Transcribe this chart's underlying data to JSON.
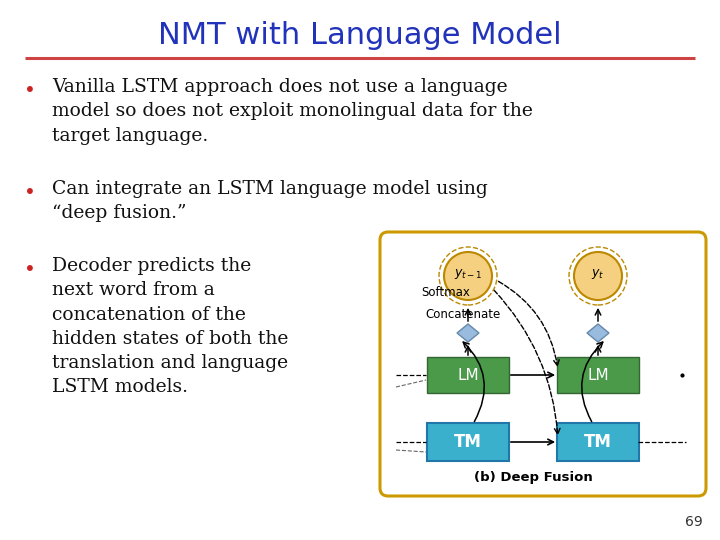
{
  "title": "NMT with Language Model",
  "title_color": "#2233BB",
  "title_fontsize": 22,
  "divider_color": "#CC4444",
  "bg_color": "#FFFFFF",
  "bullet_color": "#CC2222",
  "text_color": "#111111",
  "page_number": "69",
  "diagram_label": "(b) Deep Fusion",
  "lm_color": "#4A9A4A",
  "tm_color": "#3BB0CC",
  "node_color": "#F5D080",
  "diamond_color": "#99BBDD",
  "box_border_color": "#CC9900",
  "bullet1": "Vanilla LSTM approach does not use a language\nmodel so does not exploit monolingual data for the\ntarget language.",
  "bullet2": "Can integrate an LSTM language model using\n“deep fusion.”",
  "bullet3": "Decoder predicts the\nnext word from a\nconcatenation of the\nhidden states of both the\ntranslation and language\nLSTM models."
}
